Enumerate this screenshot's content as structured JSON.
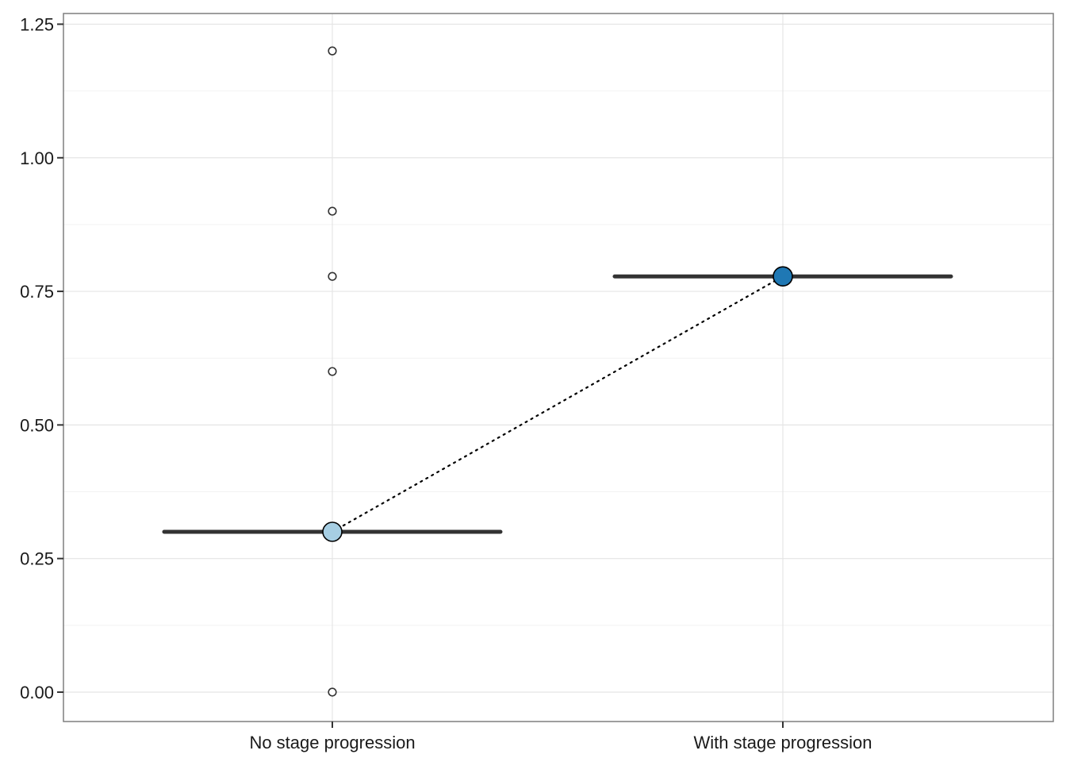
{
  "chart_data": {
    "type": "scatter",
    "title": "",
    "xlabel": "",
    "ylabel": "",
    "categories": [
      "No stage progression",
      "With stage progression"
    ],
    "ylim": [
      -0.055,
      1.27
    ],
    "y_ticks": [
      0.0,
      0.25,
      0.5,
      0.75,
      1.0,
      1.25
    ],
    "y_tick_labels": [
      "0.00",
      "0.25",
      "0.50",
      "0.75",
      "1.00",
      "1.25"
    ],
    "y_minor_ticks": [
      0.125,
      0.375,
      0.625,
      0.875,
      1.125
    ],
    "grid": true,
    "legend": "none",
    "observations": [
      {
        "category": "No stage progression",
        "values": [
          1.2,
          0.9,
          0.778,
          0.6,
          0.0
        ]
      },
      {
        "category": "With stage progression",
        "values": []
      }
    ],
    "summary": [
      {
        "category": "No stage progression",
        "value": 0.3,
        "color": "#a6cee3"
      },
      {
        "category": "With stage progression",
        "value": 0.778,
        "color": "#1f78b4"
      }
    ],
    "connector": {
      "style": "dotted",
      "color": "#000000"
    }
  }
}
